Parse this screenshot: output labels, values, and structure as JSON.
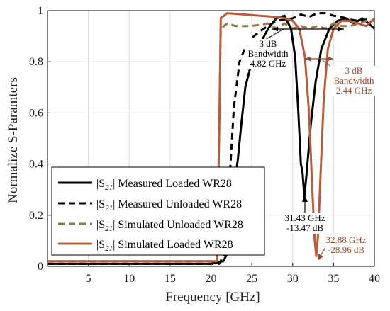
{
  "chart_data": {
    "type": "line",
    "xlabel": "Frequency [GHz]",
    "ylabel": "Normalize S-Paramters",
    "xlim": [
      0,
      40
    ],
    "ylim": [
      0,
      1
    ],
    "xticks": [
      "5",
      "10",
      "15",
      "20",
      "25",
      "30",
      "35",
      "40"
    ],
    "yticks": [
      "0",
      "0.2",
      "0.4",
      "0.6",
      "0.8",
      "1"
    ],
    "grid": true,
    "legend_position": "bottom-left",
    "series": [
      {
        "name": "|S21| Measured Loaded WR28",
        "name_prefix": "|S",
        "name_sub": "21",
        "name_suffix": "| Measured Loaded WR28",
        "color": "#000000",
        "dash": "solid",
        "points": [
          [
            0,
            0.01
          ],
          [
            20,
            0.01
          ],
          [
            21.5,
            0.02
          ],
          [
            22,
            0.05
          ],
          [
            22.5,
            0.2
          ],
          [
            23,
            0.35
          ],
          [
            23.3,
            0.42
          ],
          [
            23.7,
            0.55
          ],
          [
            24.2,
            0.7
          ],
          [
            25,
            0.8
          ],
          [
            26,
            0.87
          ],
          [
            27,
            0.93
          ],
          [
            28,
            0.97
          ],
          [
            29,
            0.98
          ],
          [
            29.8,
            0.93
          ],
          [
            30.3,
            0.82
          ],
          [
            30.7,
            0.6
          ],
          [
            31,
            0.4
          ],
          [
            31.2,
            0.37
          ],
          [
            31.43,
            0.27
          ],
          [
            31.7,
            0.36
          ],
          [
            32.2,
            0.55
          ],
          [
            32.8,
            0.72
          ],
          [
            33.5,
            0.85
          ],
          [
            34.5,
            0.93
          ],
          [
            35.5,
            0.96
          ],
          [
            36.5,
            0.97
          ],
          [
            37.5,
            0.95
          ],
          [
            38.5,
            0.97
          ],
          [
            39.3,
            0.95
          ],
          [
            40,
            0.93
          ]
        ]
      },
      {
        "name": "|S21| Measured Unloaded WR28",
        "name_prefix": "|S",
        "name_sub": "21",
        "name_suffix": "| Measured Unloaded WR28",
        "color": "#000000",
        "dash": "dashed",
        "points": [
          [
            0,
            0.01
          ],
          [
            21,
            0.01
          ],
          [
            21.7,
            0.05
          ],
          [
            22.2,
            0.3
          ],
          [
            22.8,
            0.62
          ],
          [
            23.5,
            0.8
          ],
          [
            24.5,
            0.88
          ],
          [
            26,
            0.92
          ],
          [
            28,
            0.96
          ],
          [
            30,
            0.97
          ],
          [
            31,
            0.985
          ],
          [
            32,
            0.975
          ],
          [
            33,
            0.99
          ],
          [
            34,
            0.99
          ],
          [
            35,
            0.98
          ],
          [
            36,
            0.975
          ],
          [
            37,
            0.965
          ],
          [
            38,
            0.96
          ],
          [
            39,
            0.965
          ],
          [
            40,
            0.96
          ]
        ]
      },
      {
        "name": "|S21| Simulated Unloaded WR28",
        "name_prefix": "|S",
        "name_sub": "21",
        "name_suffix": "| Simulated Unloaded WR28",
        "color": "#9b7448",
        "dash": "dashed",
        "points": [
          [
            0,
            0.02
          ],
          [
            20.7,
            0.02
          ],
          [
            21,
            0.5
          ],
          [
            21.2,
            0.93
          ],
          [
            22,
            0.95
          ],
          [
            23,
            0.94
          ],
          [
            25,
            0.94
          ],
          [
            27,
            0.95
          ],
          [
            28,
            0.93
          ],
          [
            29,
            0.95
          ],
          [
            30,
            0.93
          ],
          [
            31,
            0.94
          ],
          [
            32,
            0.93
          ],
          [
            33,
            0.94
          ],
          [
            34,
            0.93
          ],
          [
            35,
            0.95
          ],
          [
            36,
            0.94
          ],
          [
            37,
            0.94
          ],
          [
            38,
            0.95
          ],
          [
            39,
            0.96
          ],
          [
            40,
            0.96
          ]
        ]
      },
      {
        "name": "|S21| Simulated Loaded WR28",
        "name_prefix": "|S",
        "name_sub": "21",
        "name_suffix": "| Simulated Loaded WR28",
        "color": "#b85c3a",
        "dash": "solid",
        "points": [
          [
            0,
            0.02
          ],
          [
            20.7,
            0.02
          ],
          [
            21,
            0.5
          ],
          [
            21.2,
            0.97
          ],
          [
            22,
            0.99
          ],
          [
            24,
            0.985
          ],
          [
            26,
            0.98
          ],
          [
            28,
            0.975
          ],
          [
            29,
            0.97
          ],
          [
            30,
            0.96
          ],
          [
            30.8,
            0.93
          ],
          [
            31.5,
            0.82
          ],
          [
            32,
            0.6
          ],
          [
            32.4,
            0.3
          ],
          [
            32.7,
            0.1
          ],
          [
            32.88,
            0.04
          ],
          [
            33.1,
            0.12
          ],
          [
            33.4,
            0.35
          ],
          [
            33.8,
            0.65
          ],
          [
            34.3,
            0.85
          ],
          [
            35,
            0.93
          ],
          [
            36,
            0.96
          ],
          [
            37,
            0.96
          ],
          [
            38,
            0.95
          ],
          [
            39,
            0.94
          ],
          [
            40,
            0.97
          ]
        ]
      }
    ],
    "annotations": [
      {
        "lines": [
          "3 dB",
          "Bandwidth",
          "4.82 GHz"
        ],
        "color": "#000000"
      },
      {
        "lines": [
          "3 dB",
          "Bandwidth",
          "2.44 GHz"
        ],
        "color": "#9c4a2a"
      },
      {
        "lines": [
          "31.43 GHz",
          "-13.47 dB"
        ],
        "color": "#000000"
      },
      {
        "lines": [
          "32.88 GHz",
          "-28.96 dB"
        ],
        "color": "#9c4a2a"
      }
    ]
  }
}
